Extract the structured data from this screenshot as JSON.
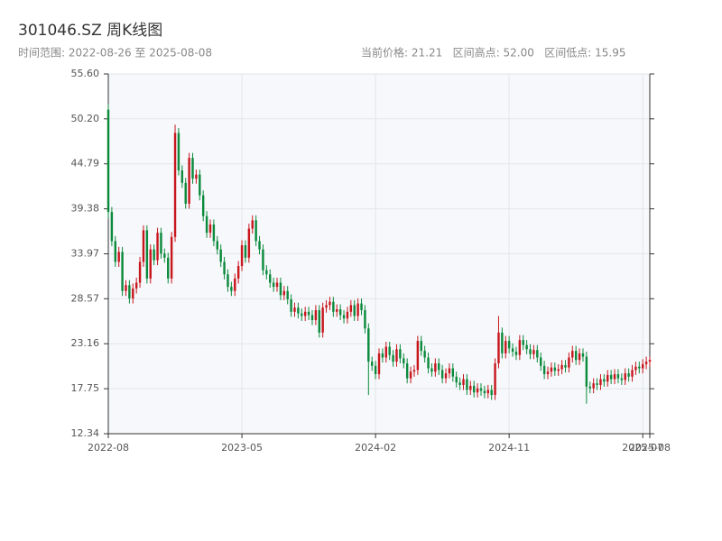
{
  "chart_data": {
    "type": "candlestick",
    "title": "301046.SZ 周K线图",
    "subtitle_left": "时间范围: 2022-08-26 至 2025-08-08",
    "subtitle_right": "当前价格: 21.21   区间高点: 52.00   区间低点: 15.95",
    "up_color": "#c8161d",
    "down_color": "#0b8a3c",
    "grid": true,
    "ylim": [
      12.34,
      55.6
    ],
    "yticks": [
      12.34,
      17.75,
      23.16,
      28.57,
      33.97,
      39.38,
      44.79,
      {
        "value": 50.2,
        "label": "50.20"
      },
      {
        "value": 55.6,
        "label": "55.60"
      }
    ],
    "xlim": [
      0,
      154
    ],
    "xticks": [
      {
        "value": 0,
        "label": "2022-08"
      },
      {
        "value": 38,
        "label": "2023-05"
      },
      {
        "value": 76,
        "label": "2024-02"
      },
      {
        "value": 114,
        "label": "2024-11"
      },
      {
        "value": 152,
        "label": "2025-07"
      },
      {
        "value": 154,
        "label": "2025-08"
      }
    ],
    "ohlc": [
      [
        51.3,
        52.0,
        38.2,
        39.0
      ],
      [
        39.0,
        39.6,
        34.9,
        35.5
      ],
      [
        35.5,
        36.1,
        32.4,
        33.0
      ],
      [
        33.0,
        34.8,
        32.4,
        34.2
      ],
      [
        34.2,
        34.8,
        28.9,
        29.5
      ],
      [
        29.5,
        30.8,
        28.9,
        30.2
      ],
      [
        30.2,
        30.8,
        28.0,
        28.6
      ],
      [
        28.6,
        30.4,
        28.0,
        29.8
      ],
      [
        29.8,
        31.1,
        29.2,
        30.5
      ],
      [
        30.5,
        33.6,
        29.9,
        33.0
      ],
      [
        33.0,
        37.4,
        32.4,
        36.8
      ],
      [
        36.8,
        37.4,
        30.4,
        31.0
      ],
      [
        31.0,
        35.1,
        30.4,
        34.5
      ],
      [
        34.5,
        35.1,
        32.6,
        33.2
      ],
      [
        33.2,
        37.1,
        32.6,
        36.5
      ],
      [
        36.5,
        37.1,
        33.4,
        34.0
      ],
      [
        34.0,
        34.6,
        32.9,
        33.5
      ],
      [
        33.5,
        34.1,
        30.4,
        31.0
      ],
      [
        31.0,
        36.6,
        30.4,
        36.0
      ],
      [
        36.0,
        49.5,
        35.4,
        48.5
      ],
      [
        48.5,
        49.1,
        43.4,
        44.0
      ],
      [
        44.0,
        44.6,
        41.9,
        42.5
      ],
      [
        42.5,
        43.1,
        39.4,
        40.0
      ],
      [
        40.0,
        46.1,
        39.4,
        45.5
      ],
      [
        45.5,
        46.1,
        42.4,
        43.0
      ],
      [
        43.0,
        44.1,
        42.4,
        43.5
      ],
      [
        43.5,
        44.1,
        40.4,
        41.0
      ],
      [
        41.0,
        41.6,
        37.9,
        38.5
      ],
      [
        38.5,
        39.1,
        35.9,
        36.5
      ],
      [
        36.5,
        38.1,
        35.9,
        37.5
      ],
      [
        37.5,
        38.1,
        34.9,
        35.5
      ],
      [
        35.5,
        36.1,
        33.9,
        34.5
      ],
      [
        34.5,
        35.1,
        32.4,
        33.0
      ],
      [
        33.0,
        33.6,
        30.9,
        31.5
      ],
      [
        31.5,
        32.1,
        29.4,
        30.0
      ],
      [
        30.0,
        30.6,
        28.9,
        29.5
      ],
      [
        29.5,
        31.6,
        28.9,
        31.0
      ],
      [
        31.0,
        33.1,
        30.4,
        32.5
      ],
      [
        32.5,
        35.6,
        31.9,
        35.0
      ],
      [
        35.0,
        35.6,
        32.9,
        33.5
      ],
      [
        33.5,
        37.6,
        32.9,
        37.0
      ],
      [
        37.0,
        38.6,
        36.4,
        38.0
      ],
      [
        38.0,
        38.6,
        34.9,
        35.5
      ],
      [
        35.5,
        36.1,
        33.9,
        34.5
      ],
      [
        34.5,
        35.1,
        31.4,
        32.0
      ],
      [
        32.0,
        32.6,
        30.9,
        31.5
      ],
      [
        31.5,
        32.1,
        29.9,
        30.5
      ],
      [
        30.5,
        31.1,
        29.4,
        30.0
      ],
      [
        30.0,
        31.1,
        29.4,
        30.5
      ],
      [
        30.5,
        31.1,
        28.4,
        29.0
      ],
      [
        29.0,
        30.1,
        28.4,
        29.5
      ],
      [
        29.5,
        30.1,
        27.9,
        28.5
      ],
      [
        28.5,
        29.1,
        26.4,
        27.0
      ],
      [
        27.0,
        28.1,
        26.4,
        27.5
      ],
      [
        27.5,
        28.1,
        26.2,
        26.8
      ],
      [
        26.8,
        27.4,
        25.9,
        26.5
      ],
      [
        26.5,
        27.6,
        25.9,
        27.0
      ],
      [
        27.0,
        27.6,
        26.0,
        26.6
      ],
      [
        26.6,
        27.2,
        25.4,
        26.0
      ],
      [
        26.0,
        27.8,
        25.4,
        27.2
      ],
      [
        27.2,
        27.8,
        23.9,
        24.5
      ],
      [
        24.5,
        28.1,
        23.9,
        27.5
      ],
      [
        27.5,
        28.4,
        26.9,
        27.8
      ],
      [
        27.8,
        28.8,
        27.2,
        28.2
      ],
      [
        28.2,
        28.8,
        26.4,
        27.0
      ],
      [
        27.0,
        27.9,
        26.4,
        27.3
      ],
      [
        27.3,
        27.9,
        26.0,
        26.6
      ],
      [
        26.6,
        27.2,
        25.6,
        26.2
      ],
      [
        26.2,
        27.6,
        25.6,
        27.0
      ],
      [
        27.0,
        28.4,
        26.4,
        27.8
      ],
      [
        27.8,
        28.4,
        25.9,
        26.5
      ],
      [
        26.5,
        28.6,
        25.9,
        28.0
      ],
      [
        28.0,
        28.6,
        26.6,
        27.2
      ],
      [
        27.2,
        27.8,
        24.4,
        25.0
      ],
      [
        25.0,
        25.6,
        17.0,
        21.0
      ],
      [
        21.0,
        21.6,
        19.9,
        20.5
      ],
      [
        20.5,
        21.1,
        18.9,
        19.5
      ],
      [
        19.5,
        22.6,
        18.9,
        22.0
      ],
      [
        22.0,
        22.6,
        20.9,
        21.5
      ],
      [
        21.5,
        23.4,
        20.9,
        22.8
      ],
      [
        22.8,
        23.4,
        21.2,
        21.8
      ],
      [
        21.8,
        22.4,
        20.4,
        21.0
      ],
      [
        21.0,
        23.1,
        20.4,
        22.5
      ],
      [
        22.5,
        23.1,
        20.8,
        21.4
      ],
      [
        21.4,
        22.0,
        20.2,
        20.8
      ],
      [
        20.8,
        21.4,
        18.4,
        19.0
      ],
      [
        19.0,
        20.4,
        18.4,
        19.8
      ],
      [
        19.8,
        20.6,
        19.2,
        20.0
      ],
      [
        20.0,
        24.1,
        19.4,
        23.5
      ],
      [
        23.5,
        24.1,
        21.7,
        22.3
      ],
      [
        22.3,
        22.9,
        20.9,
        21.5
      ],
      [
        21.5,
        22.1,
        19.6,
        20.2
      ],
      [
        20.2,
        20.8,
        19.2,
        19.8
      ],
      [
        19.8,
        21.4,
        19.2,
        20.8
      ],
      [
        20.8,
        21.4,
        19.4,
        20.0
      ],
      [
        20.0,
        20.6,
        18.4,
        19.0
      ],
      [
        19.0,
        20.2,
        18.4,
        19.6
      ],
      [
        19.6,
        20.8,
        19.0,
        20.2
      ],
      [
        20.2,
        20.8,
        18.6,
        19.2
      ],
      [
        19.2,
        19.8,
        17.9,
        18.5
      ],
      [
        18.5,
        19.1,
        17.6,
        18.2
      ],
      [
        18.2,
        19.5,
        17.6,
        18.9
      ],
      [
        18.9,
        19.5,
        17.0,
        17.6
      ],
      [
        17.6,
        18.7,
        17.0,
        18.1
      ],
      [
        18.1,
        18.7,
        16.7,
        17.3
      ],
      [
        17.3,
        18.4,
        16.7,
        17.8
      ],
      [
        17.8,
        18.4,
        16.9,
        17.5
      ],
      [
        17.5,
        18.1,
        16.6,
        17.2
      ],
      [
        17.2,
        18.2,
        16.6,
        17.6
      ],
      [
        17.6,
        18.2,
        16.4,
        17.0
      ],
      [
        17.0,
        21.4,
        16.4,
        20.8
      ],
      [
        20.8,
        26.5,
        20.2,
        24.5
      ],
      [
        24.5,
        25.1,
        21.4,
        22.0
      ],
      [
        22.0,
        24.1,
        21.4,
        23.5
      ],
      [
        23.5,
        24.1,
        22.0,
        22.6
      ],
      [
        22.6,
        23.2,
        21.6,
        22.2
      ],
      [
        22.2,
        22.8,
        21.2,
        21.8
      ],
      [
        21.8,
        24.2,
        21.2,
        23.6
      ],
      [
        23.6,
        24.2,
        22.4,
        23.0
      ],
      [
        23.0,
        23.6,
        21.9,
        22.5
      ],
      [
        22.5,
        23.1,
        21.3,
        21.9
      ],
      [
        21.9,
        23.0,
        21.3,
        22.4
      ],
      [
        22.4,
        23.0,
        20.9,
        21.5
      ],
      [
        21.5,
        22.1,
        19.9,
        20.5
      ],
      [
        20.5,
        21.1,
        18.9,
        19.5
      ],
      [
        19.5,
        20.4,
        18.9,
        19.8
      ],
      [
        19.8,
        20.9,
        19.2,
        20.3
      ],
      [
        20.3,
        20.9,
        19.3,
        19.9
      ],
      [
        19.9,
        20.7,
        19.3,
        20.1
      ],
      [
        20.1,
        21.2,
        19.5,
        20.6
      ],
      [
        20.6,
        21.2,
        19.7,
        20.3
      ],
      [
        20.3,
        22.1,
        19.7,
        21.5
      ],
      [
        21.5,
        22.9,
        20.9,
        22.3
      ],
      [
        22.3,
        22.9,
        20.6,
        21.2
      ],
      [
        21.2,
        22.6,
        20.6,
        22.0
      ],
      [
        22.0,
        22.6,
        21.0,
        21.6
      ],
      [
        21.6,
        22.2,
        15.95,
        18.0
      ],
      [
        18.0,
        18.6,
        17.2,
        17.8
      ],
      [
        17.8,
        19.0,
        17.2,
        18.4
      ],
      [
        18.4,
        19.0,
        17.6,
        18.2
      ],
      [
        18.2,
        19.5,
        17.6,
        18.9
      ],
      [
        18.9,
        19.5,
        18.0,
        18.6
      ],
      [
        18.6,
        20.0,
        18.0,
        19.4
      ],
      [
        19.4,
        20.0,
        18.3,
        18.9
      ],
      [
        18.9,
        20.1,
        18.3,
        19.5
      ],
      [
        19.5,
        20.1,
        18.4,
        19.0
      ],
      [
        19.0,
        19.6,
        18.2,
        18.8
      ],
      [
        18.8,
        20.2,
        18.2,
        19.6
      ],
      [
        19.6,
        20.2,
        18.6,
        19.2
      ],
      [
        19.2,
        20.6,
        18.6,
        20.0
      ],
      [
        20.0,
        21.0,
        19.4,
        20.4
      ],
      [
        20.4,
        21.0,
        19.6,
        20.2
      ],
      [
        20.2,
        21.3,
        19.6,
        20.7
      ],
      [
        20.7,
        21.6,
        20.1,
        21.0
      ],
      [
        21.0,
        21.6,
        20.4,
        21.21
      ]
    ]
  }
}
